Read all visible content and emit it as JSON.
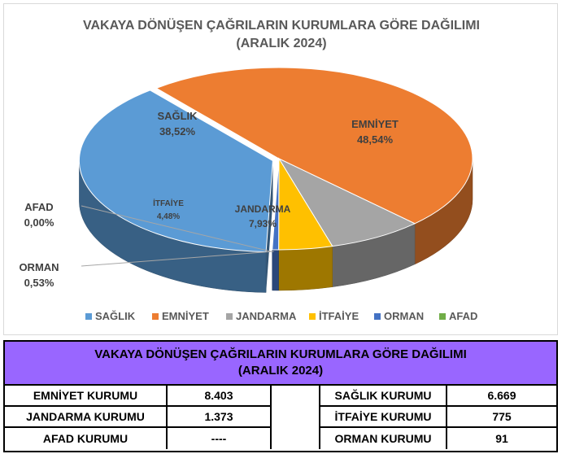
{
  "chart_data": {
    "type": "pie",
    "title": "VAKAYA DÖNÜŞEN ÇAĞRILARIN KURUMLARA GÖRE DAĞILIMI",
    "subtitle": "(ARALIK 2024)",
    "slices": [
      {
        "name": "SAĞLIK",
        "label": "SAĞLIK",
        "value": 38.52,
        "value_label": "38,52%",
        "color": "#5b9bd5"
      },
      {
        "name": "EMNİYET",
        "label": "EMNİYET",
        "value": 48.54,
        "value_label": "48,54%",
        "color": "#ed7d31"
      },
      {
        "name": "JANDARMA",
        "label": "JANDARMA",
        "value": 7.93,
        "value_label": "7,93%",
        "color": "#a5a5a5"
      },
      {
        "name": "İTFAİYE",
        "label": "İTFAİYE",
        "value": 4.48,
        "value_label": "4,48%",
        "color": "#ffc000"
      },
      {
        "name": "ORMAN",
        "label": "ORMAN",
        "value": 0.53,
        "value_label": "0,53%",
        "color": "#4472c4"
      },
      {
        "name": "AFAD",
        "label": "AFAD",
        "value": 0.0,
        "value_label": "0,00%",
        "color": "#70ad47"
      }
    ],
    "legend_position": "bottom",
    "style": "3d-exploded-pie"
  },
  "summary_table": {
    "title_line1": "VAKAYA DÖNÜŞEN ÇAĞRILARIN KURUMLARA GÖRE DAĞILIMI",
    "title_line2": "(ARALIK 2024)",
    "left": [
      {
        "name": "EMNİYET KURUMU",
        "value": "8.403"
      },
      {
        "name": "JANDARMA KURUMU",
        "value": "1.373"
      },
      {
        "name": "AFAD KURUMU",
        "value": "----"
      }
    ],
    "right": [
      {
        "name": "SAĞLIK KURUMU",
        "value": "6.669"
      },
      {
        "name": "İTFAİYE KURUMU",
        "value": "775"
      },
      {
        "name": "ORMAN KURUMU",
        "value": "91"
      }
    ]
  }
}
